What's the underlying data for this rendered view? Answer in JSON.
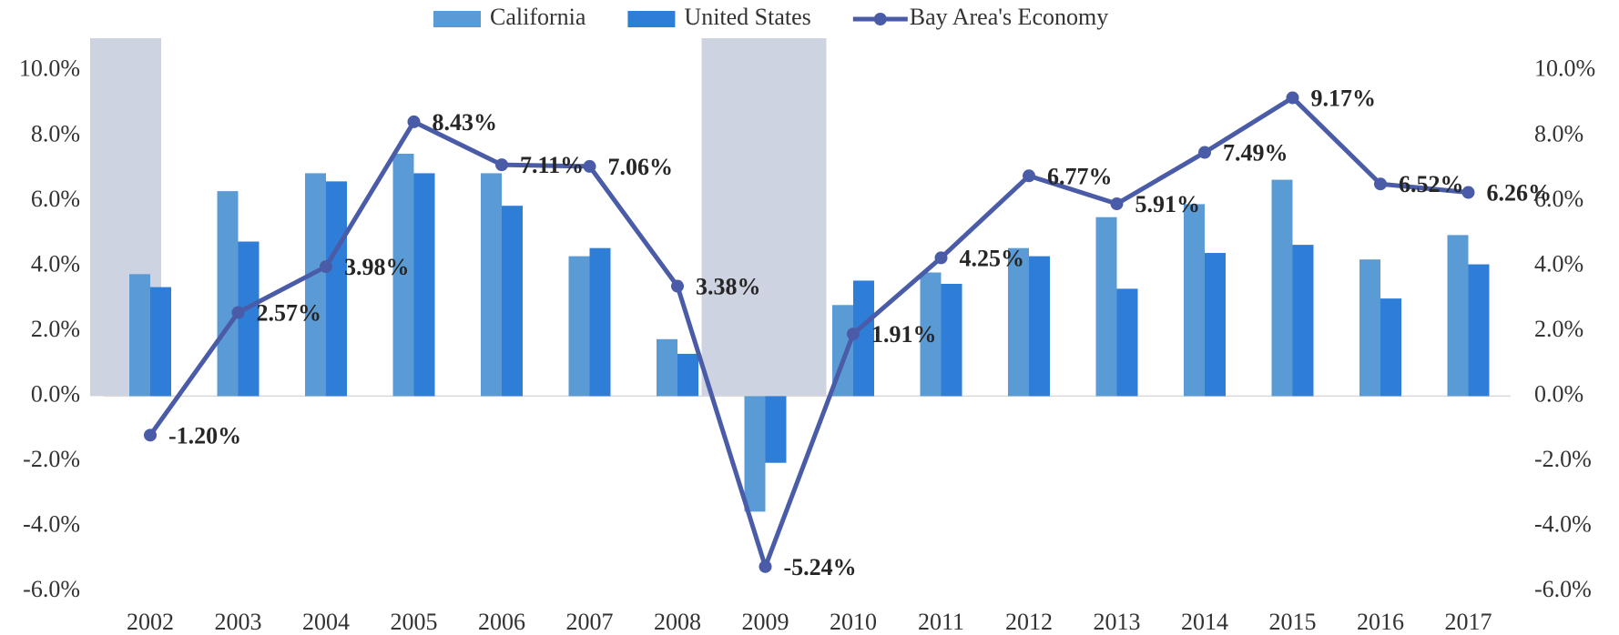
{
  "chart_data": {
    "type": "bar-line",
    "categories": [
      "2002",
      "2003",
      "2004",
      "2005",
      "2006",
      "2007",
      "2008",
      "2009",
      "2010",
      "2011",
      "2012",
      "2013",
      "2014",
      "2015",
      "2016",
      "2017"
    ],
    "series": [
      {
        "name": "California",
        "color": "#5b9bd5",
        "type": "bar",
        "values": [
          3.75,
          6.3,
          6.85,
          7.45,
          6.85,
          4.3,
          1.75,
          -3.55,
          2.8,
          3.8,
          4.55,
          5.5,
          5.9,
          6.65,
          4.2,
          4.95
        ]
      },
      {
        "name": "United States",
        "color": "#2e7dd6",
        "type": "bar",
        "values": [
          3.35,
          4.75,
          6.6,
          6.85,
          5.85,
          4.55,
          1.3,
          -2.05,
          3.55,
          3.45,
          4.3,
          3.3,
          4.4,
          4.65,
          3.0,
          4.05
        ]
      },
      {
        "name": "Bay Area's Economy",
        "color": "#4a5ca8",
        "type": "line",
        "axis": "y2",
        "values": [
          -1.2,
          2.57,
          3.98,
          8.43,
          7.11,
          7.06,
          3.38,
          -5.24,
          1.91,
          4.25,
          6.77,
          5.91,
          7.49,
          9.17,
          6.52,
          6.26
        ],
        "value_labels": [
          "-1.20%",
          "2.57%",
          "3.98%",
          "8.43%",
          "7.11%",
          "7.06%",
          "3.38%",
          "-5.24%",
          "1.91%",
          "4.25%",
          "6.77%",
          "5.91%",
          "7.49%",
          "9.17%",
          "6.52%",
          "6.26%"
        ]
      }
    ],
    "ylim": [
      -6,
      11
    ],
    "yticks": [
      {
        "value": -6,
        "label": "-6.0%"
      },
      {
        "value": -4,
        "label": "-4.0%"
      },
      {
        "value": -2,
        "label": "-2.0%"
      },
      {
        "value": 0,
        "label": "0.0%"
      },
      {
        "value": 2,
        "label": "2.0%"
      },
      {
        "value": 4,
        "label": "4.0%"
      },
      {
        "value": 6,
        "label": "6.0%"
      },
      {
        "value": 8,
        "label": "8.0%"
      },
      {
        "value": 10,
        "label": "10.0%"
      }
    ],
    "y2lim": [
      -6,
      11
    ],
    "y2ticks": [
      {
        "value": -6,
        "label": "-6.0%"
      },
      {
        "value": -4,
        "label": "-4.0%"
      },
      {
        "value": -2,
        "label": "-2.0%"
      },
      {
        "value": 0,
        "label": "0.0%"
      },
      {
        "value": 2,
        "label": "2.0%"
      },
      {
        "value": 4,
        "label": "4.0%"
      },
      {
        "value": 6,
        "label": "6.0%"
      },
      {
        "value": 8,
        "label": "8.0%"
      },
      {
        "value": 10,
        "label": "10.0%"
      }
    ],
    "legend": "top",
    "grid": false
  }
}
